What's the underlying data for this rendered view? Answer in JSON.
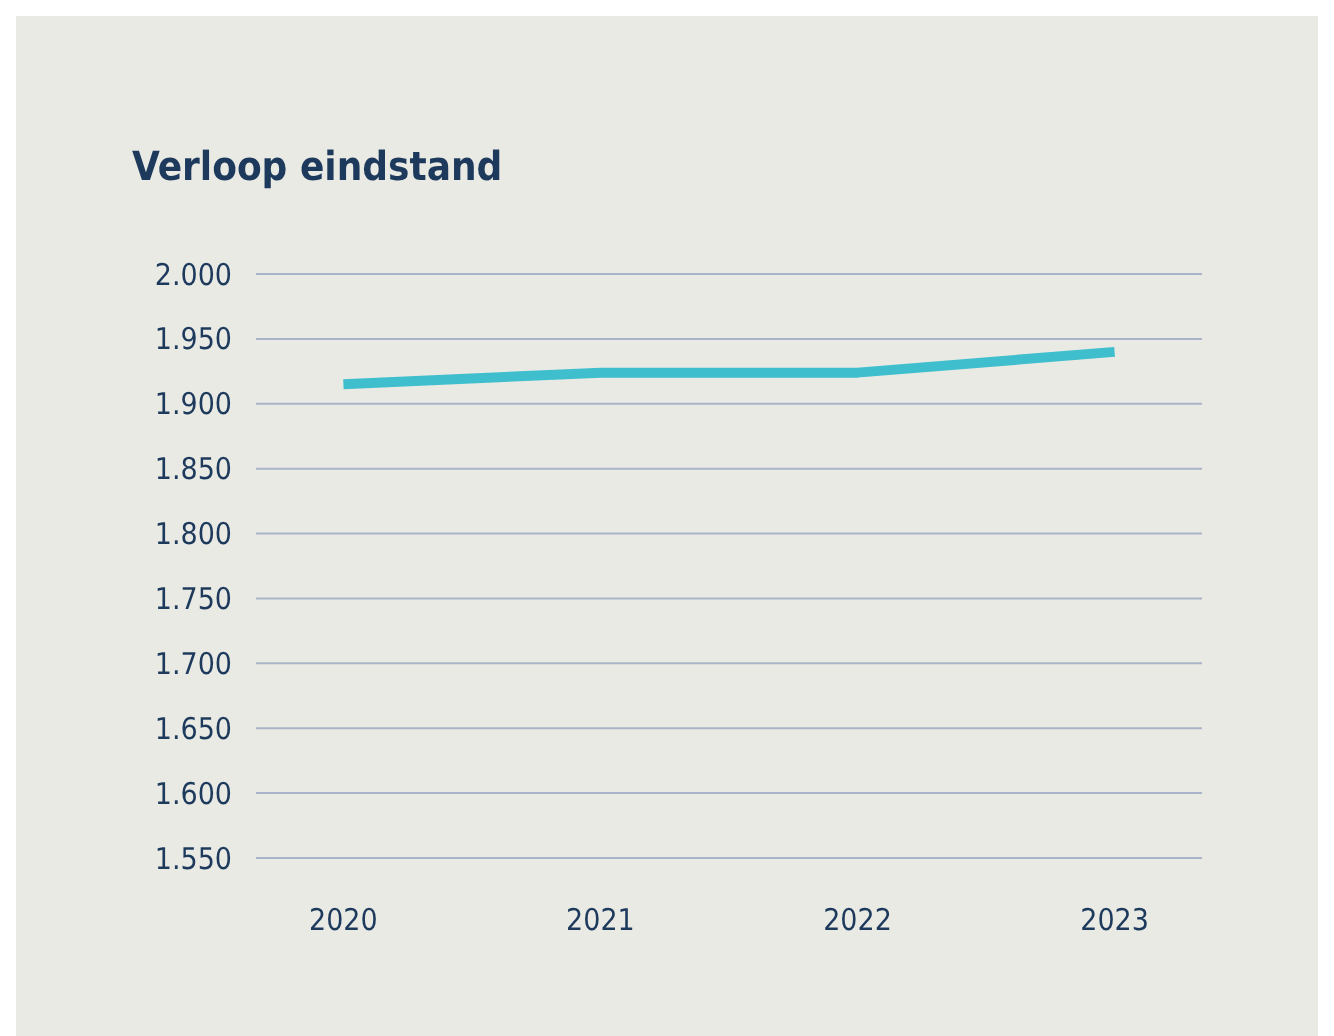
{
  "chart_data": {
    "type": "line",
    "title": "Verloop eindstand",
    "categories": [
      "2020",
      "2021",
      "2022",
      "2023"
    ],
    "series": [
      {
        "color": "#3fbfcd",
        "values": [
          1915,
          1924,
          1924,
          1940
        ]
      }
    ],
    "ylim": [
      1550,
      2000
    ],
    "yticks": [
      {
        "value": 1550,
        "label": "1.550"
      },
      {
        "value": 1600,
        "label": "1.600"
      },
      {
        "value": 1650,
        "label": "1.650"
      },
      {
        "value": 1700,
        "label": "1.700"
      },
      {
        "value": 1750,
        "label": "1.750"
      },
      {
        "value": 1800,
        "label": "1.800"
      },
      {
        "value": 1850,
        "label": "1.850"
      },
      {
        "value": 1900,
        "label": "1.900"
      },
      {
        "value": 1950,
        "label": "1.950"
      },
      {
        "value": 2000,
        "label": "2.000"
      }
    ],
    "grid": "y",
    "marker": "none",
    "line_style": "solid"
  }
}
